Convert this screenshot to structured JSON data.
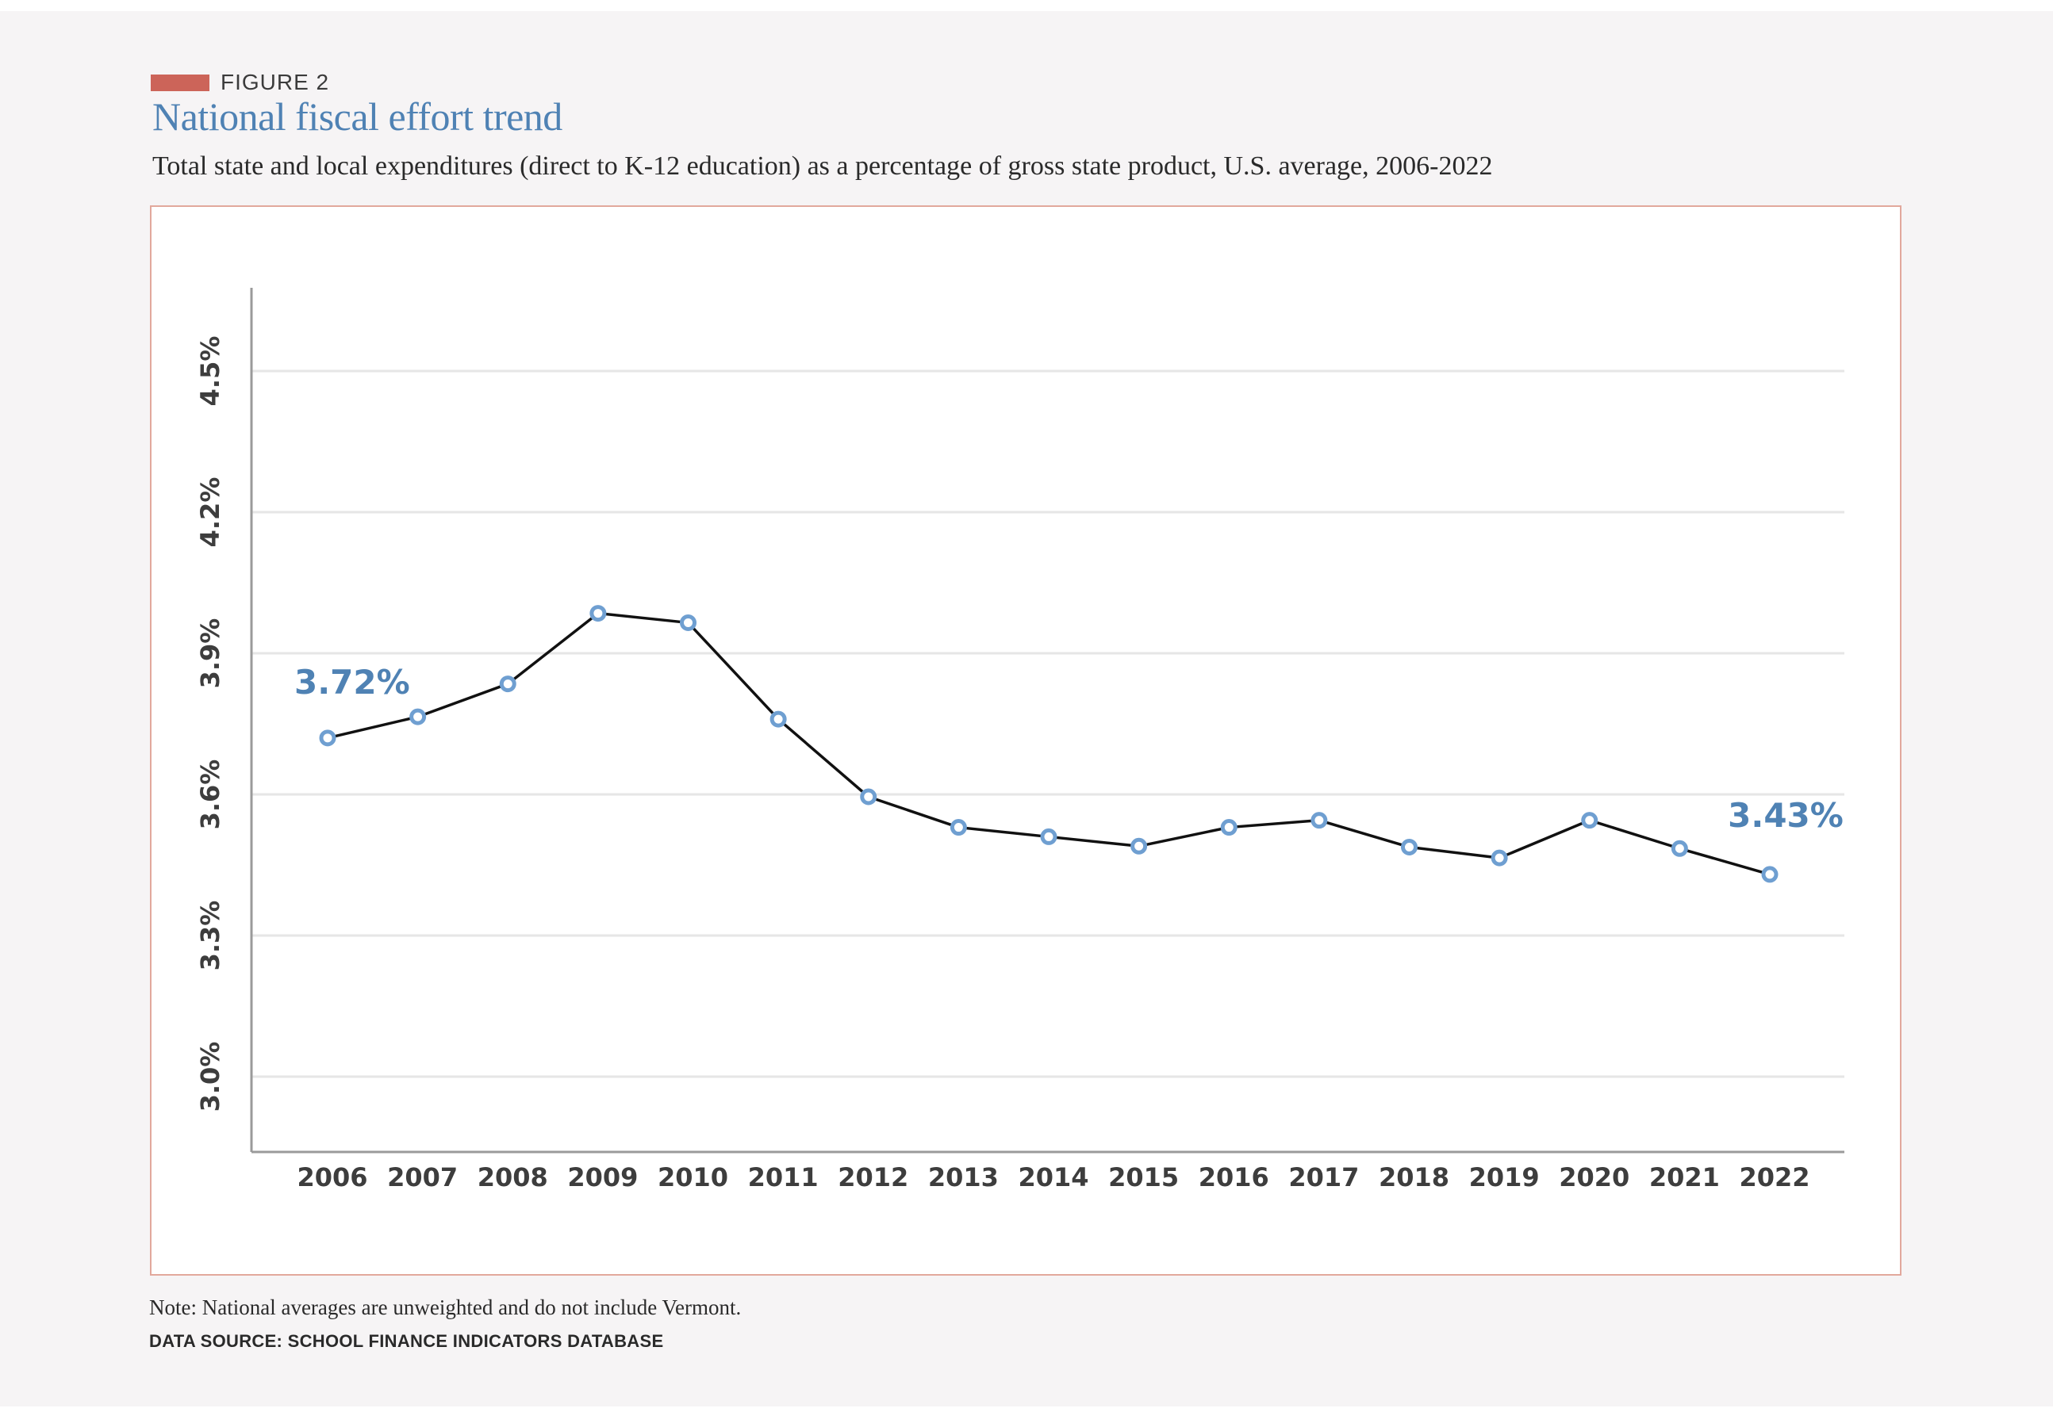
{
  "figure": {
    "label": "FIGURE 2",
    "title": "National fiscal effort trend",
    "subtitle": "Total state and local expenditures (direct to K-12 education) as a percentage of gross state product, U.S. average, 2006-2022",
    "note": "Note: National averages are unweighted and do not include Vermont.",
    "source": "DATA SOURCE: SCHOOL FINANCE INDICATORS DATABASE"
  },
  "colors": {
    "accent": "#cc6459",
    "title": "#4f82b4",
    "line": "#111111",
    "marker": "#6f9fd1",
    "grid": "#e6e6e6"
  },
  "chart_data": {
    "type": "line",
    "title": "National fiscal effort trend",
    "xlabel": "",
    "ylabel": "",
    "x": [
      "2006",
      "2007",
      "2008",
      "2009",
      "2010",
      "2011",
      "2012",
      "2013",
      "2014",
      "2015",
      "2016",
      "2017",
      "2018",
      "2019",
      "2020",
      "2021",
      "2022"
    ],
    "series": [
      {
        "values": [
          3.72,
          3.765,
          3.835,
          3.985,
          3.965,
          3.76,
          3.595,
          3.53,
          3.51,
          3.49,
          3.53,
          3.545,
          3.488,
          3.465,
          3.545,
          3.485,
          3.43
        ]
      }
    ],
    "ylim": [
      2.84,
      4.655
    ],
    "yticks": [
      3.0,
      3.3,
      3.6,
      3.9,
      4.2,
      4.5
    ],
    "ytick_labels": [
      "3.0%",
      "3.3%",
      "3.6%",
      "3.9%",
      "4.2%",
      "4.5%"
    ],
    "grid": true,
    "legend": "none",
    "annotations": [
      {
        "x": "2006",
        "text": "3.72%"
      },
      {
        "x": "2022",
        "text": "3.43%"
      }
    ]
  }
}
